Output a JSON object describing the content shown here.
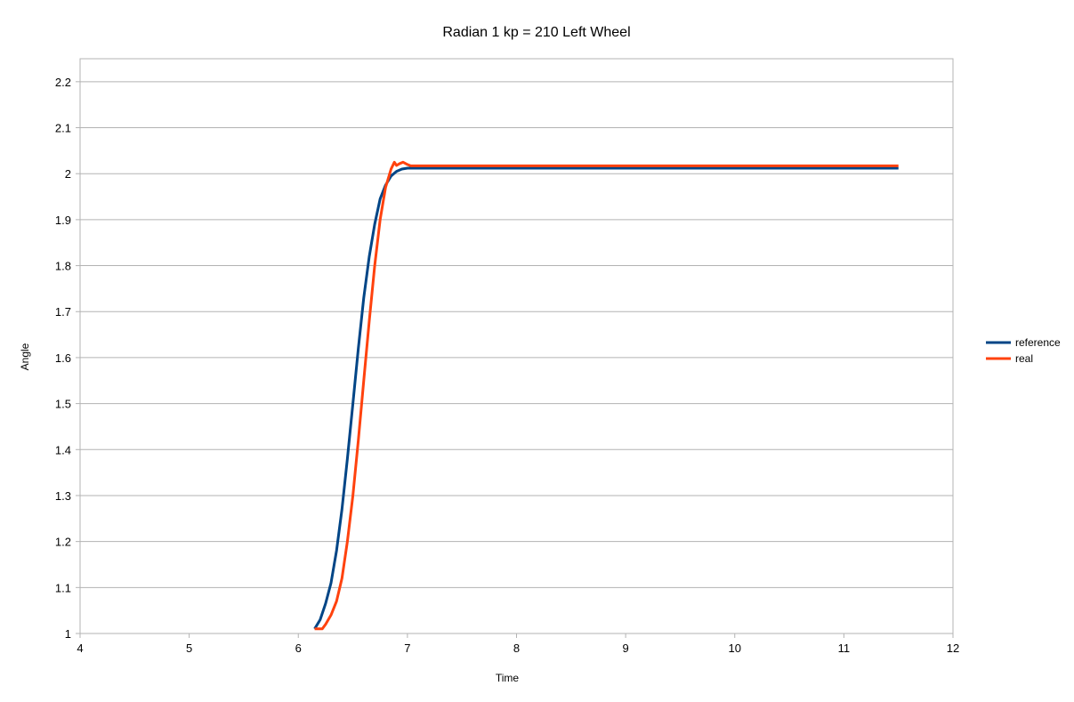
{
  "chart_data": {
    "type": "line",
    "title": "Radian 1 kp = 210 Left Wheel",
    "xlabel": "Time",
    "ylabel": "Angle",
    "xlim": [
      4,
      12
    ],
    "ylim": [
      1,
      2.25
    ],
    "x_ticks": [
      "4",
      "5",
      "6",
      "7",
      "8",
      "9",
      "10",
      "11",
      "12"
    ],
    "y_ticks": [
      "1",
      "1.1",
      "1.2",
      "1.3",
      "1.4",
      "1.5",
      "1.6",
      "1.7",
      "1.8",
      "1.9",
      "2",
      "2.1",
      "2.2"
    ],
    "grid": true,
    "legend_position": "right",
    "series": [
      {
        "name": "reference",
        "color": "#004586",
        "x": [
          6.15,
          6.2,
          6.25,
          6.3,
          6.35,
          6.4,
          6.45,
          6.5,
          6.55,
          6.6,
          6.65,
          6.7,
          6.75,
          6.8,
          6.85,
          6.9,
          6.95,
          7.0,
          11.5
        ],
        "y": [
          1.01,
          1.03,
          1.065,
          1.11,
          1.18,
          1.27,
          1.38,
          1.5,
          1.62,
          1.73,
          1.82,
          1.89,
          1.945,
          1.975,
          1.995,
          2.005,
          2.01,
          2.012,
          2.012
        ]
      },
      {
        "name": "real",
        "color": "#ff420e",
        "x": [
          6.15,
          6.22,
          6.25,
          6.3,
          6.35,
          6.4,
          6.45,
          6.5,
          6.55,
          6.6,
          6.65,
          6.7,
          6.75,
          6.8,
          6.85,
          6.88,
          6.9,
          6.93,
          6.96,
          7.0,
          7.03,
          11.5
        ],
        "y": [
          1.01,
          1.01,
          1.02,
          1.04,
          1.07,
          1.12,
          1.2,
          1.3,
          1.42,
          1.55,
          1.68,
          1.8,
          1.9,
          1.97,
          2.01,
          2.025,
          2.018,
          2.022,
          2.025,
          2.02,
          2.017,
          2.017
        ]
      }
    ]
  }
}
